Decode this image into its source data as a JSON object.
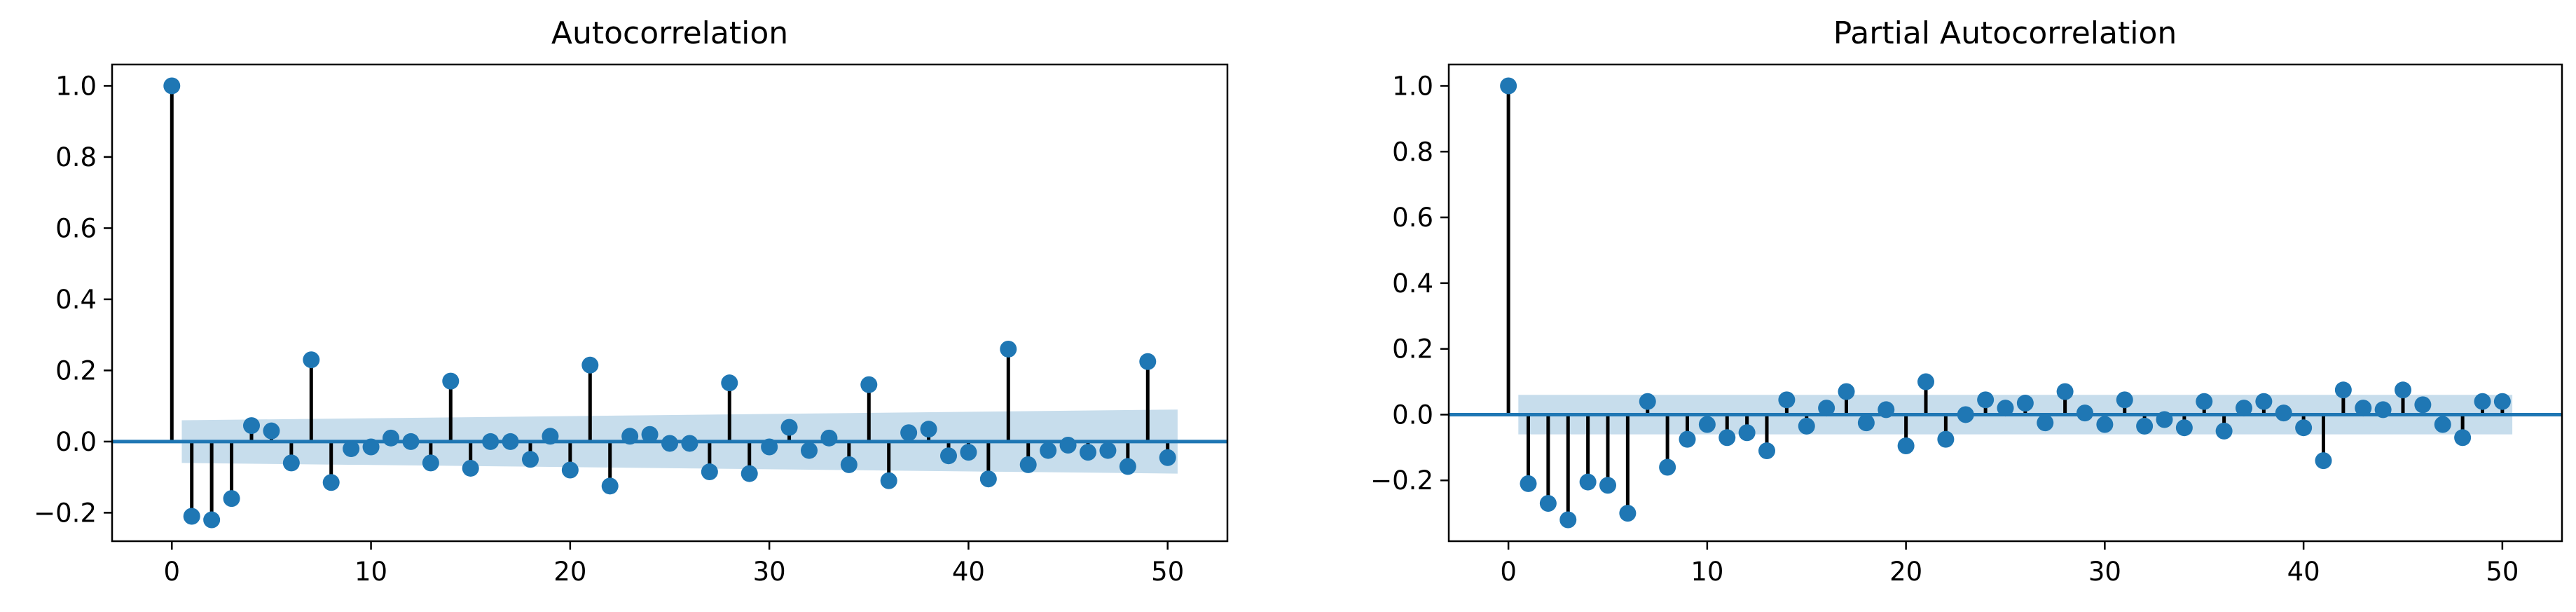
{
  "colors": {
    "marker": "#1f77b4",
    "stem": "#000000",
    "baseline": "#1f77b4",
    "confidence_band": "#1f77b4",
    "axes": "#000000",
    "background": "#ffffff"
  },
  "chart_data": [
    {
      "type": "stem",
      "title": "Autocorrelation",
      "xlabel": "",
      "ylabel": "",
      "xlim": [
        -3,
        53
      ],
      "ylim": [
        -0.28,
        1.06
      ],
      "xticks": [
        0,
        10,
        20,
        30,
        40,
        50
      ],
      "yticks": [
        -0.2,
        0.0,
        0.2,
        0.4,
        0.6,
        0.8,
        1.0
      ],
      "xtick_labels": [
        "0",
        "10",
        "20",
        "30",
        "40",
        "50"
      ],
      "ytick_labels": [
        "−0.2",
        "0.0",
        "0.2",
        "0.4",
        "0.6",
        "0.8",
        "1.0"
      ],
      "grid": false,
      "confidence_band": {
        "lag": [
          0.5,
          50.5
        ],
        "upper": [
          0.06,
          0.09
        ],
        "lower": [
          -0.06,
          -0.09
        ]
      },
      "lags": [
        0,
        1,
        2,
        3,
        4,
        5,
        6,
        7,
        8,
        9,
        10,
        11,
        12,
        13,
        14,
        15,
        16,
        17,
        18,
        19,
        20,
        21,
        22,
        23,
        24,
        25,
        26,
        27,
        28,
        29,
        30,
        31,
        32,
        33,
        34,
        35,
        36,
        37,
        38,
        39,
        40,
        41,
        42,
        43,
        44,
        45,
        46,
        47,
        48,
        49,
        50
      ],
      "values": [
        1.0,
        -0.21,
        -0.22,
        -0.16,
        0.045,
        0.03,
        -0.06,
        0.23,
        -0.115,
        -0.02,
        -0.015,
        0.01,
        0.0,
        -0.06,
        0.17,
        -0.075,
        0.0,
        0.0,
        -0.05,
        0.015,
        -0.08,
        0.215,
        -0.125,
        0.015,
        0.02,
        -0.005,
        -0.005,
        -0.085,
        0.165,
        -0.09,
        -0.015,
        0.04,
        -0.025,
        0.01,
        -0.065,
        0.16,
        -0.11,
        0.025,
        0.035,
        -0.04,
        -0.03,
        -0.105,
        0.26,
        -0.065,
        -0.025,
        -0.01,
        -0.03,
        -0.025,
        -0.07,
        0.225,
        -0.045
      ]
    },
    {
      "type": "stem",
      "title": "Partial Autocorrelation",
      "xlabel": "",
      "ylabel": "",
      "xlim": [
        -3,
        53
      ],
      "ylim": [
        -0.385,
        1.065
      ],
      "xticks": [
        0,
        10,
        20,
        30,
        40,
        50
      ],
      "yticks": [
        -0.2,
        0.0,
        0.2,
        0.4,
        0.6,
        0.8,
        1.0
      ],
      "xtick_labels": [
        "0",
        "10",
        "20",
        "30",
        "40",
        "50"
      ],
      "ytick_labels": [
        "−0.2",
        "0.0",
        "0.2",
        "0.4",
        "0.6",
        "0.8",
        "1.0"
      ],
      "grid": false,
      "confidence_band": {
        "lag": [
          0.5,
          50.5
        ],
        "upper": [
          0.06,
          0.06
        ],
        "lower": [
          -0.06,
          -0.06
        ]
      },
      "lags": [
        0,
        1,
        2,
        3,
        4,
        5,
        6,
        7,
        8,
        9,
        10,
        11,
        12,
        13,
        14,
        15,
        16,
        17,
        18,
        19,
        20,
        21,
        22,
        23,
        24,
        25,
        26,
        27,
        28,
        29,
        30,
        31,
        32,
        33,
        34,
        35,
        36,
        37,
        38,
        39,
        40,
        41,
        42,
        43,
        44,
        45,
        46,
        47,
        48,
        49,
        50
      ],
      "values": [
        1.0,
        -0.21,
        -0.27,
        -0.32,
        -0.205,
        -0.215,
        -0.3,
        0.04,
        -0.16,
        -0.075,
        -0.03,
        -0.07,
        -0.055,
        -0.11,
        0.045,
        -0.035,
        0.02,
        0.07,
        -0.025,
        0.015,
        -0.095,
        0.1,
        -0.075,
        0.0,
        0.045,
        0.02,
        0.035,
        -0.025,
        0.07,
        0.005,
        -0.03,
        0.045,
        -0.035,
        -0.015,
        -0.04,
        0.04,
        -0.05,
        0.02,
        0.04,
        0.005,
        -0.04,
        -0.14,
        0.075,
        0.02,
        0.015,
        0.075,
        0.03,
        -0.03,
        -0.07,
        0.04,
        0.04
      ]
    }
  ]
}
